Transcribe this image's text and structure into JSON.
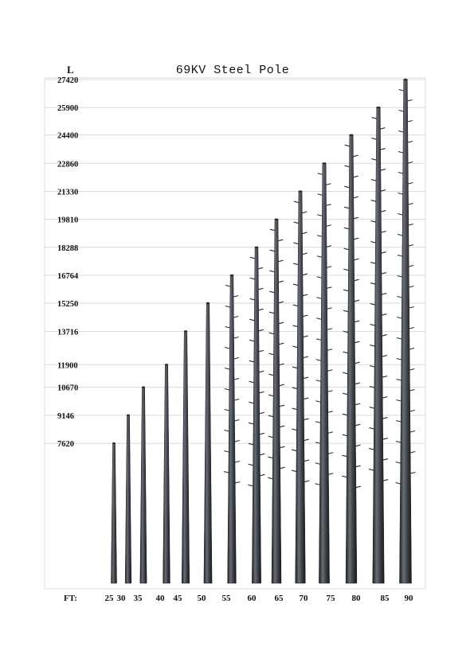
{
  "chart_data": {
    "type": "bar",
    "title": "69KV Steel Pole",
    "ylabel": "L",
    "xlabel": "FT:",
    "categories": [
      "25",
      "30",
      "35",
      "40",
      "45",
      "50",
      "55",
      "60",
      "65",
      "70",
      "75",
      "80",
      "85",
      "90"
    ],
    "values": [
      7620,
      9146,
      10670,
      11900,
      13716,
      15250,
      16764,
      18288,
      19810,
      21330,
      22860,
      24400,
      25900,
      27420
    ],
    "y_tick_labels": [
      "27420",
      "25900",
      "24400",
      "22860",
      "21330",
      "19810",
      "18288",
      "16764",
      "15250",
      "13716",
      "11900",
      "10670",
      "9146",
      "7620"
    ],
    "ylim": [
      0,
      27420
    ],
    "grid": true,
    "pole_color": "#3a3d44"
  }
}
